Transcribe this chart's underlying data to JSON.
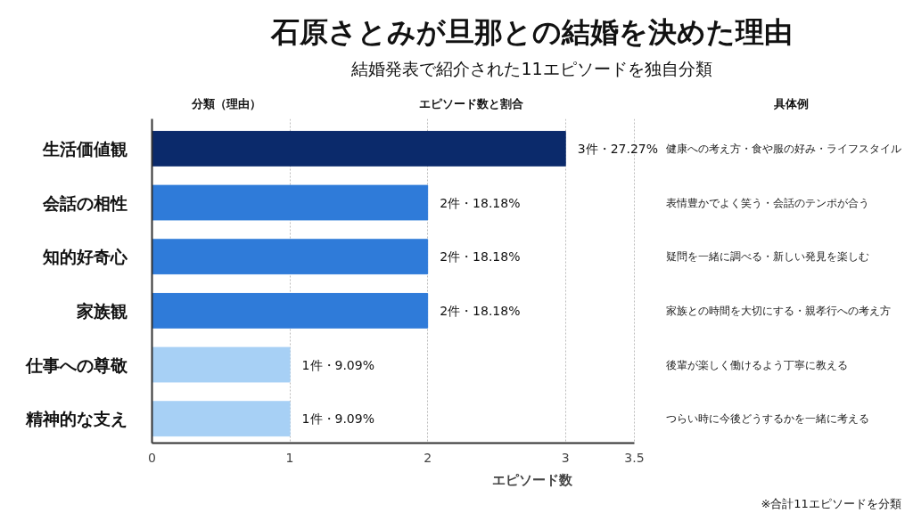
{
  "chart_data": {
    "type": "bar",
    "orientation": "horizontal",
    "title": "石原さとみが旦那との結婚を決めた理由",
    "subtitle": "結婚発表で紹介された11エピソードを独自分類",
    "xlabel": "エピソード数",
    "categories": [
      "生活価値観",
      "会話の相性",
      "知的好奇心",
      "家族観",
      "仕事への尊敬",
      "精神的な支え"
    ],
    "values": [
      3,
      2,
      2,
      2,
      1,
      1
    ],
    "colors": [
      "#0b2a6b",
      "#2f7bd9",
      "#2f7bd9",
      "#2f7bd9",
      "#a7d0f5",
      "#a7d0f5"
    ],
    "value_labels": [
      "3件・27.27%",
      "2件・18.18%",
      "2件・18.18%",
      "2件・18.18%",
      "1件・9.09%",
      "1件・9.09%"
    ],
    "xlim": [
      0,
      3.5
    ],
    "xticks": [
      0,
      1,
      2,
      3,
      3.5
    ],
    "grid": "x",
    "annotations": [
      "分類（理由）",
      "エピソード数と割合",
      "具体例",
      "※合計11エピソードを分類",
      "健康への考え方・食や服の好み・ライフスタイル",
      "表情豊かでよく笑う・会話のテンポが合う",
      "疑問を一緒に調べる・新しい発見を楽しむ",
      "家族との時間を大切にする・親孝行への考え方",
      "後輩が楽しく働けるよう丁寧に教える",
      "つらい時に今後どうするかを一緒に考える"
    ]
  }
}
